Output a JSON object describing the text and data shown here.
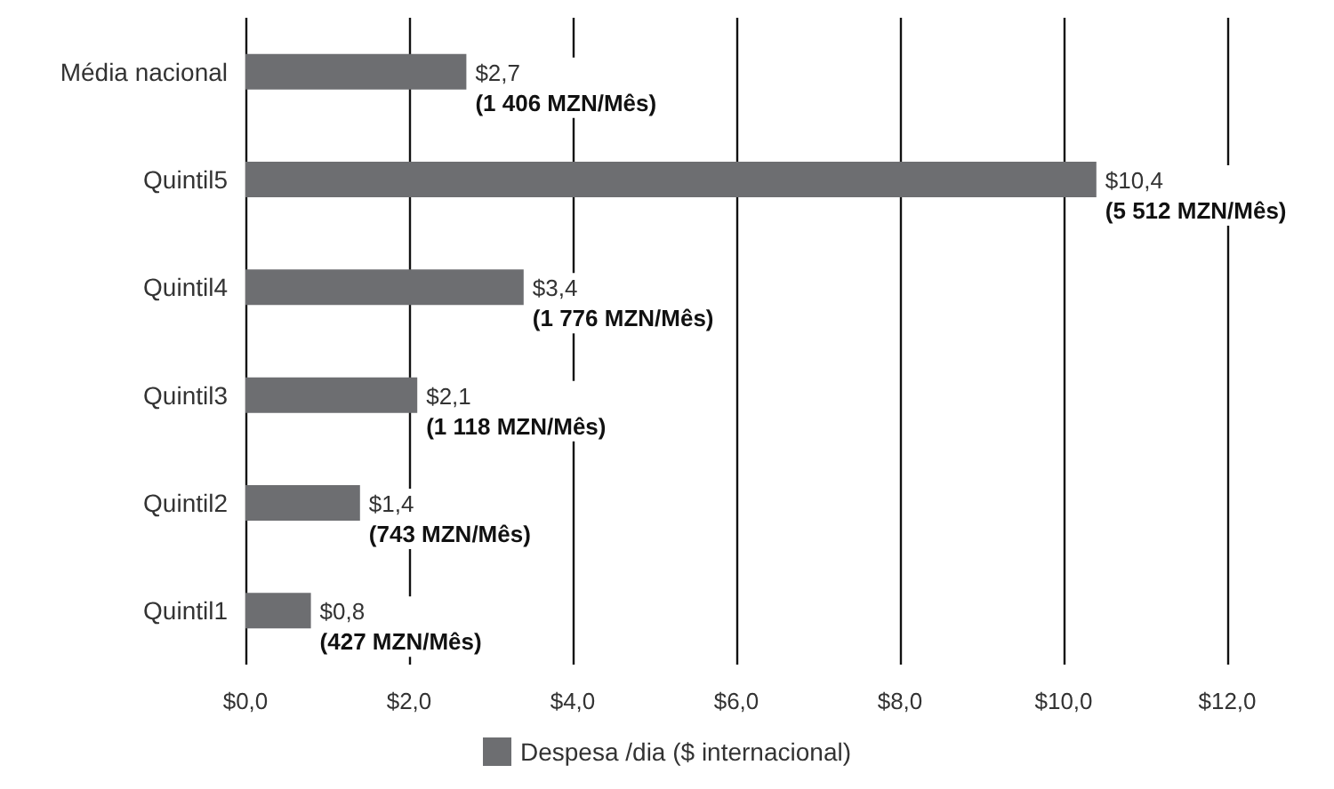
{
  "chart_data": {
    "type": "bar",
    "orientation": "horizontal",
    "categories": [
      "Média nacional",
      "Quintil5",
      "Quintil4",
      "Quintil3",
      "Quintil2",
      "Quintil1"
    ],
    "series": [
      {
        "name": "Despesa /dia ($ internacional)",
        "color": "#6d6e71",
        "values": [
          2.7,
          10.4,
          3.4,
          2.1,
          1.4,
          0.8
        ],
        "value_labels": [
          "$2,7\n(1 406 MZN/Mês)",
          "$10,4\n(5 512 MZN/Mês)",
          "$3,4\n(1 776 MZN/Mês)",
          "$2,1\n(1 118 MZN/Mês)",
          "$1,4\n(743 MZN/Mês)",
          "$0,8\n(427 MZN/Mês)"
        ]
      }
    ],
    "xlim": [
      0,
      12
    ],
    "xticks": [
      {
        "value": 0,
        "label": "$0,0"
      },
      {
        "value": 2,
        "label": "$2,0"
      },
      {
        "value": 4,
        "label": "$4,0"
      },
      {
        "value": 6,
        "label": "$6,0"
      },
      {
        "value": 8,
        "label": "$8,0"
      },
      {
        "value": 10,
        "label": "$10,0"
      },
      {
        "value": 12,
        "label": "$12,0"
      }
    ],
    "grid": "x",
    "legend": "bottom"
  }
}
